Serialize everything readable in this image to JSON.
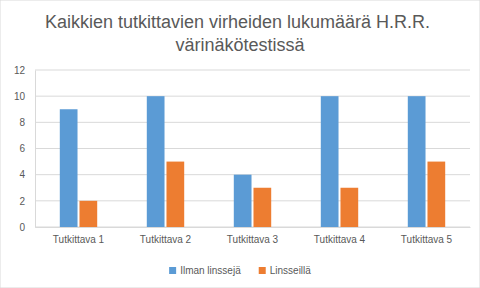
{
  "chart_data": {
    "type": "bar",
    "title": "Kaikkien tutkittavien virheiden lukumäärä H.R.R. värinäkötestissä",
    "categories": [
      "Tutkittava 1",
      "Tutkittava 2",
      "Tutkittava 3",
      "Tutkittava 4",
      "Tutkittava 5"
    ],
    "series": [
      {
        "name": "Ilman linssejä",
        "color": "#5b9bd5",
        "values": [
          9,
          10,
          4,
          10,
          10
        ]
      },
      {
        "name": "Linsseillä",
        "color": "#ed7d31",
        "values": [
          2,
          5,
          3,
          3,
          5
        ]
      }
    ],
    "ylim": [
      0,
      12
    ],
    "yticks": [
      0,
      2,
      4,
      6,
      8,
      10,
      12
    ],
    "grid": true,
    "legend": "bottom"
  }
}
